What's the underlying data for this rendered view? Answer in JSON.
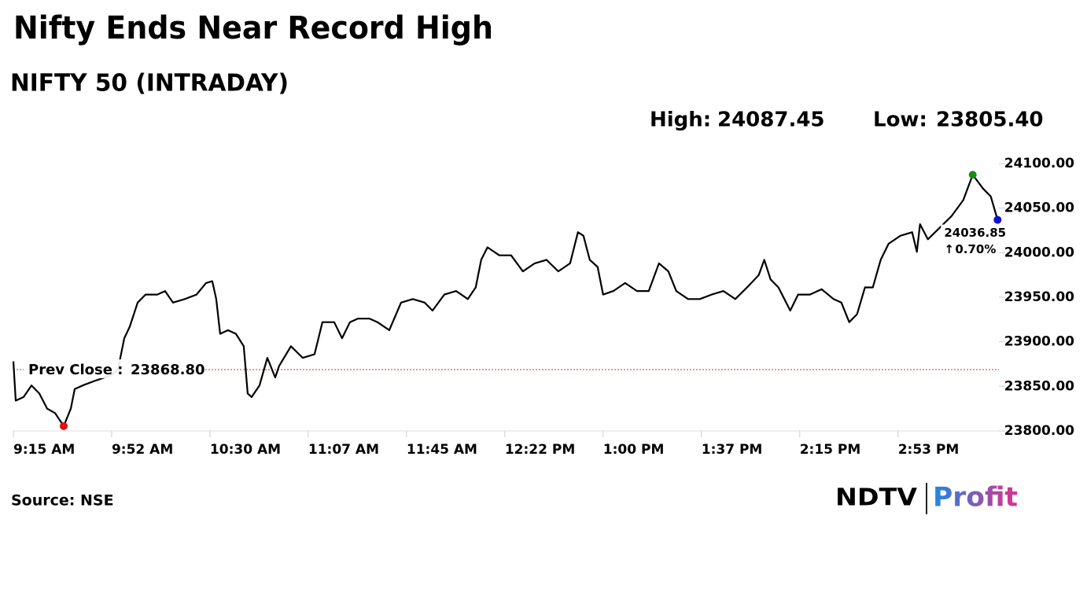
{
  "chart_data": {
    "type": "line",
    "title": "Nifty Ends Near Record High",
    "subtitle": "NIFTY 50 (INTRADAY)",
    "stats": [
      {
        "label": "High:",
        "value": 24087.45
      },
      {
        "label": "Low:",
        "value": 23805.4,
        "value_label": "23805.40"
      }
    ],
    "prev_close": {
      "label": "Prev Close :",
      "value": 23868.8,
      "value_label": "23868.80"
    },
    "change": {
      "value": 0.7,
      "label": "0.70%"
    },
    "source": "Source: NSE",
    "brand": [
      "NDTV",
      "Profit"
    ],
    "xlim": [
      0,
      376
    ],
    "xticks": [
      {
        "value": 0,
        "label": "9:15 AM"
      },
      {
        "value": 37.5,
        "label": "9:52 AM"
      },
      {
        "value": 75,
        "label": "10:30 AM"
      },
      {
        "value": 112.5,
        "label": "11:07 AM"
      },
      {
        "value": 150,
        "label": "11:45 AM"
      },
      {
        "value": 187.5,
        "label": "12:22 PM"
      },
      {
        "value": 225,
        "label": "1:00 PM"
      },
      {
        "value": 262.5,
        "label": "1:37 PM"
      },
      {
        "value": 300,
        "label": "2:15 PM"
      },
      {
        "value": 337.5,
        "label": "2:53 PM"
      }
    ],
    "ylim": [
      23800,
      24100
    ],
    "yticks": [
      {
        "value": 23800,
        "label": "23800.00"
      },
      {
        "value": 23850,
        "label": "23850.00"
      },
      {
        "value": 23900,
        "label": "23900.00"
      },
      {
        "value": 23950,
        "label": "23950.00"
      },
      {
        "value": 24000,
        "label": "24000.00"
      },
      {
        "value": 24050,
        "label": "24050.00"
      },
      {
        "value": 24100,
        "label": "24100.00"
      }
    ],
    "x": [
      0,
      0.9,
      3.9,
      6.9,
      9.9,
      12.9,
      15.9,
      19.2,
      21.9,
      23.4,
      26.4,
      30.9,
      36.9,
      39.9,
      42.3,
      44.4,
      47.4,
      50.4,
      54.9,
      57.9,
      60.9,
      65.4,
      69.9,
      73.5,
      75.9,
      77.4,
      78.9,
      81.9,
      84.9,
      87.9,
      89.4,
      90.9,
      93.9,
      96.9,
      99.9,
      101.4,
      105.9,
      110.4,
      114.9,
      117.9,
      122.4,
      125.4,
      128.4,
      131.4,
      135.9,
      138.9,
      143.4,
      147.9,
      152.4,
      156.9,
      159.9,
      164.4,
      168.9,
      173.4,
      176.4,
      178.5,
      180.9,
      185.4,
      189.9,
      194.4,
      198.9,
      203.4,
      207.9,
      212.4,
      215.4,
      217.5,
      219.9,
      222.9,
      225,
      228.9,
      233.4,
      237.9,
      242.4,
      246.3,
      249.9,
      252.9,
      257.4,
      261.9,
      266.4,
      270.9,
      275.4,
      279.9,
      284.4,
      286.5,
      288.9,
      291.9,
      296.4,
      299.4,
      303.9,
      308.4,
      312.9,
      315.9,
      318.9,
      321.9,
      324.9,
      327.9,
      330.9,
      333.9,
      338.4,
      342.9,
      344.7,
      345.9,
      348.9,
      353.4,
      357.9,
      362.4,
      366,
      369.9,
      372.9,
      375.5
    ],
    "series": [
      {
        "name": "NIFTY 50",
        "color": "#000000",
        "values": [
          23878,
          23834,
          23838,
          23851,
          23842,
          23825,
          23820,
          23805.4,
          23825,
          23847,
          23851,
          23856,
          23862,
          23869,
          23904,
          23917,
          23944,
          23953,
          23953,
          23957,
          23944,
          23948,
          23953,
          23966,
          23968,
          23948,
          23909,
          23913,
          23909,
          23895,
          23842,
          23838,
          23851,
          23882,
          23860,
          23873,
          23895,
          23882,
          23886,
          23922,
          23922,
          23904,
          23922,
          23926,
          23926,
          23922,
          23913,
          23944,
          23948,
          23944,
          23935,
          23953,
          23957,
          23948,
          23961,
          23992,
          24006,
          23997,
          23997,
          23979,
          23988,
          23992,
          23979,
          23988,
          24023,
          24019,
          23992,
          23984,
          23953,
          23957,
          23966,
          23957,
          23957,
          23988,
          23979,
          23957,
          23948,
          23948,
          23953,
          23957,
          23948,
          23961,
          23975,
          23992,
          23970,
          23961,
          23935,
          23953,
          23953,
          23959,
          23948,
          23944,
          23922,
          23931,
          23961,
          23961,
          23992,
          24010,
          24019,
          24023,
          24001,
          24032,
          24015,
          24028,
          24041,
          24059,
          24087.45,
          24072,
          24063,
          24036.85
        ]
      }
    ],
    "markers": {
      "high": "#1a8a1a",
      "low": "#e01010",
      "last": "#1010d0"
    },
    "prev_close_color": "#c0392b",
    "change_color": "#1a8a1a"
  }
}
